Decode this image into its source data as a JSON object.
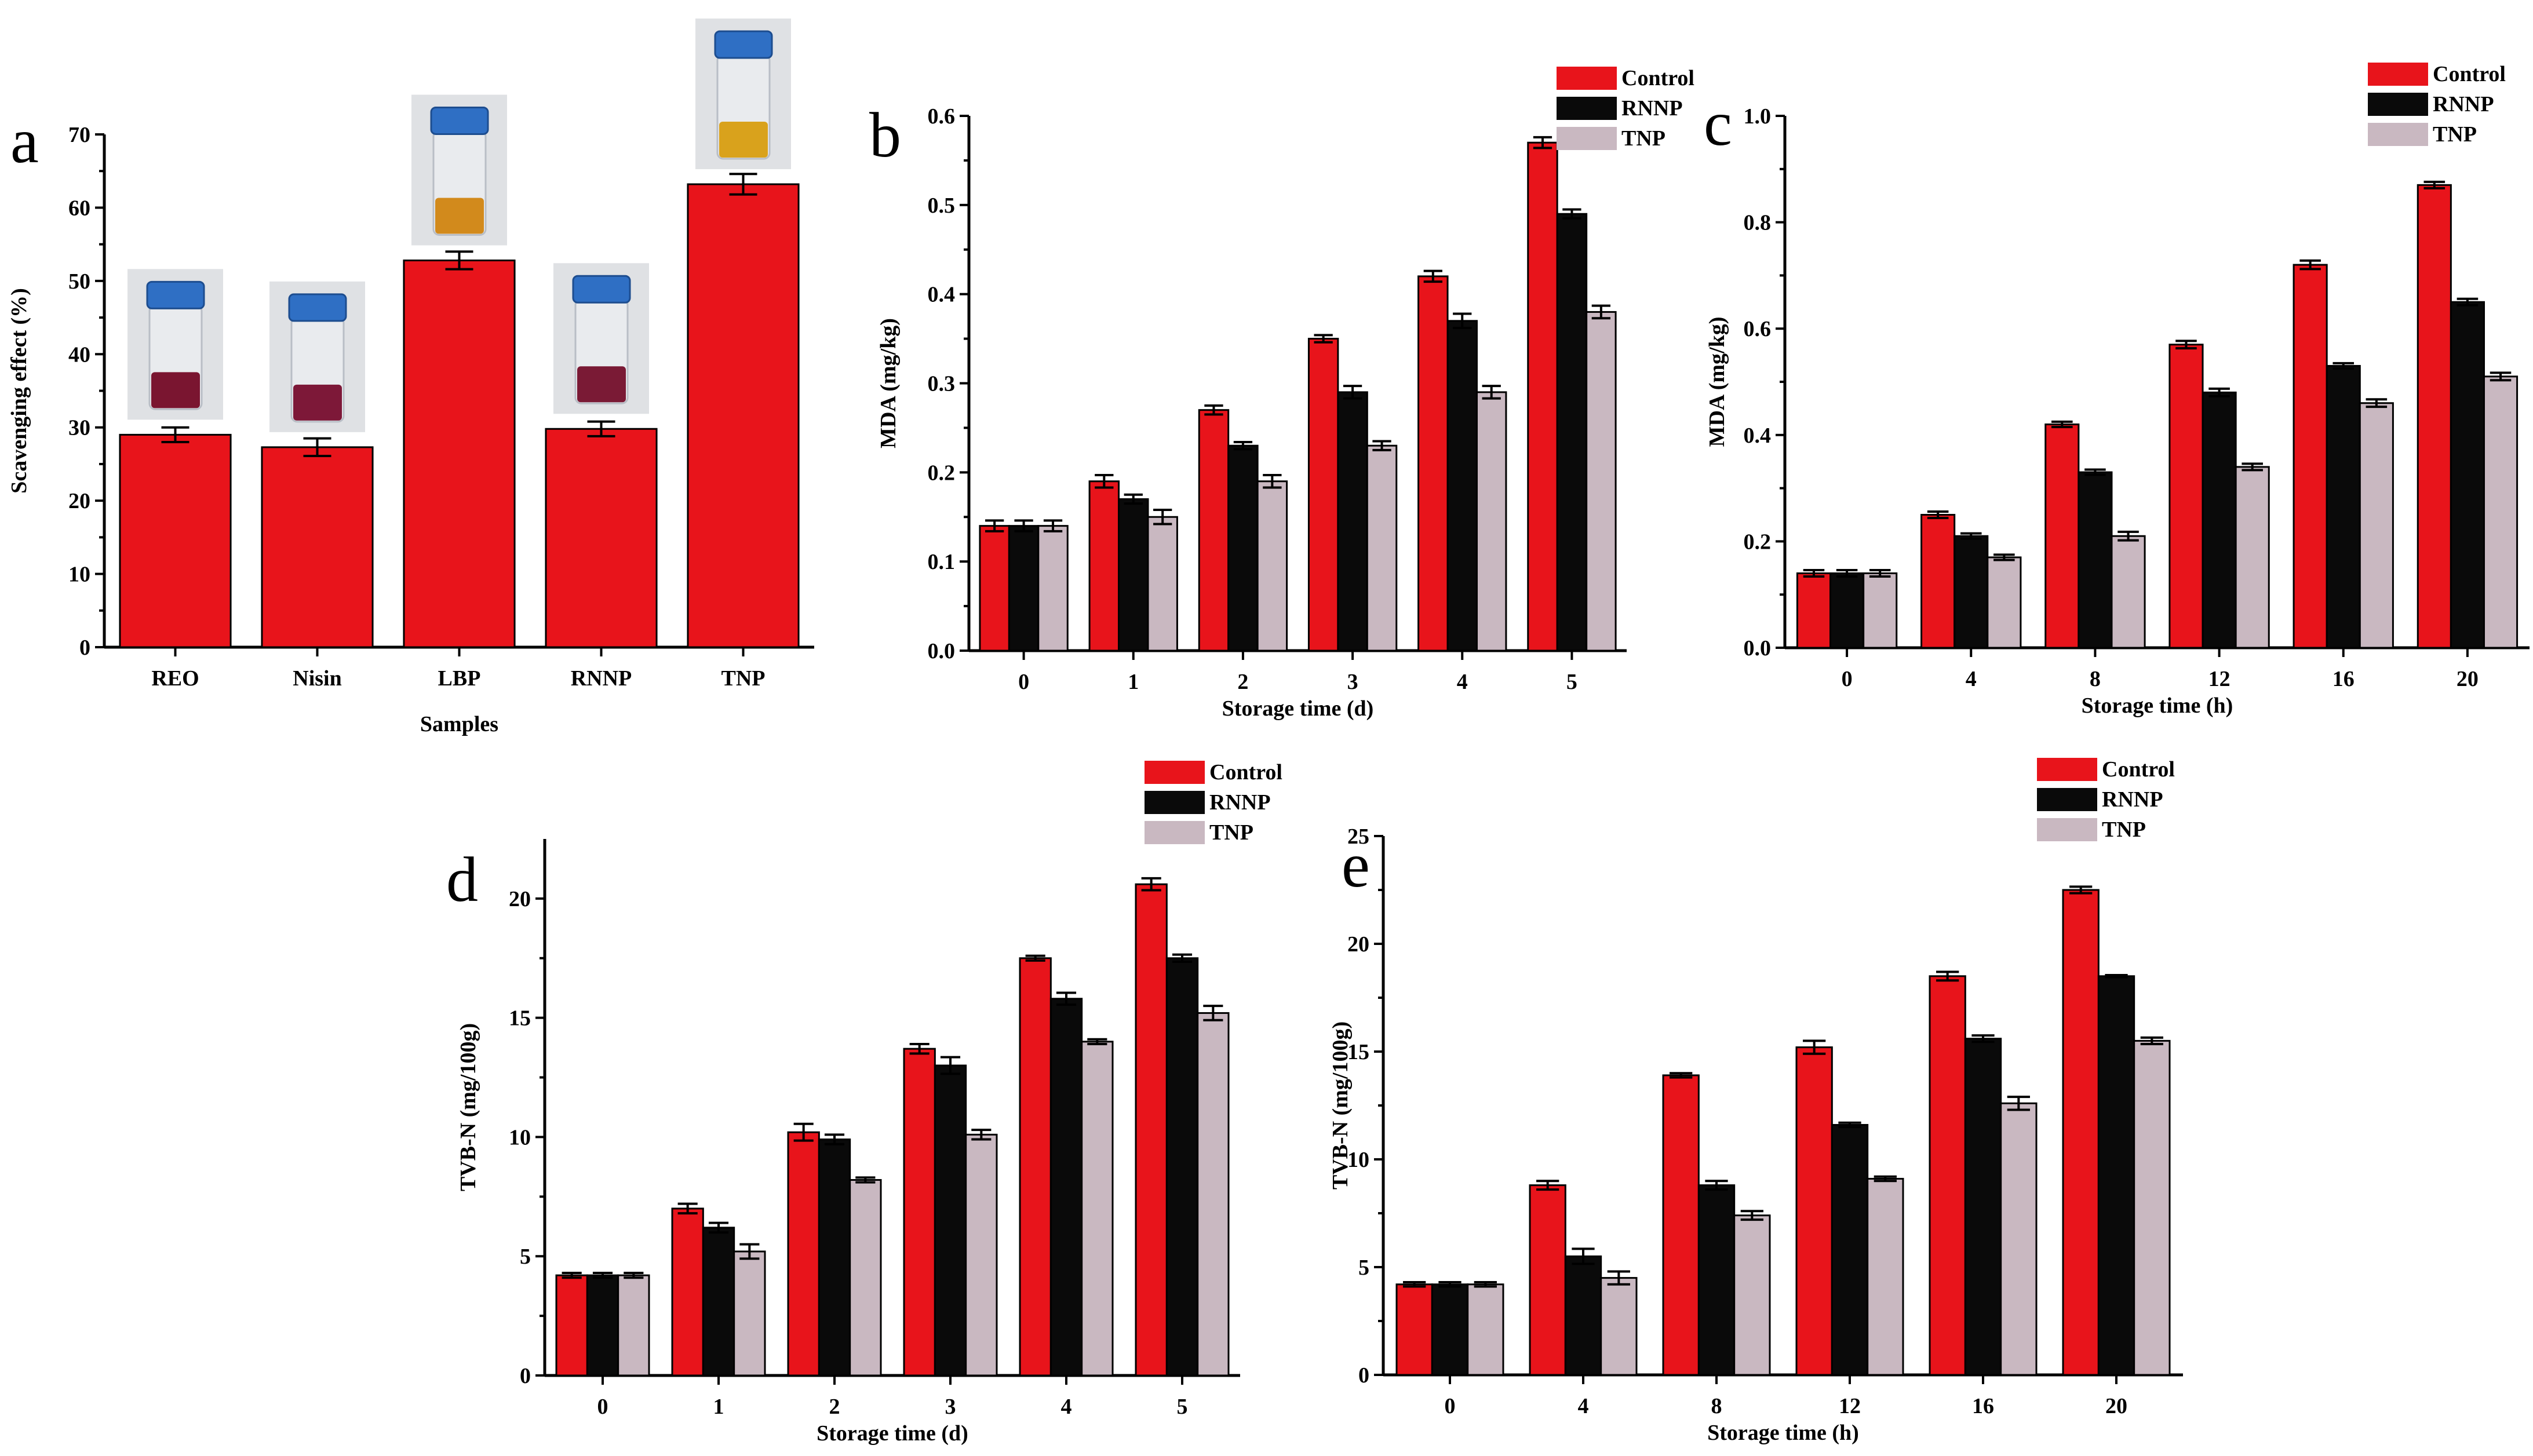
{
  "colors": {
    "control": "#e8141b",
    "rnnp": "#0a0a0a",
    "tnp": "#c9b8c1",
    "bar_single": "#e8141b"
  },
  "chart_data": [
    {
      "id": "a",
      "panel_letter": "a",
      "type": "bar",
      "title": "",
      "xlabel": "Samples",
      "ylabel": "Scavenging effect (%)",
      "ylim": [
        0,
        70
      ],
      "yticks": [
        0,
        10,
        20,
        30,
        40,
        50,
        60,
        70
      ],
      "ytick_labels": [
        "0",
        "10",
        "20",
        "30",
        "40",
        "50",
        "60",
        "70"
      ],
      "categories": [
        "REO",
        "Nisin",
        "LBP",
        "RNNP",
        "TNP"
      ],
      "series": [
        {
          "name": "Scavenging effect",
          "color_key": "bar_single",
          "values": [
            29.0,
            27.3,
            52.8,
            29.8,
            63.2
          ],
          "errors": [
            1.0,
            1.2,
            1.2,
            1.0,
            1.4
          ]
        }
      ],
      "vial_liquid_colors": [
        "#7a1530",
        "#7d1838",
        "#d28a1c",
        "#7a1a35",
        "#d9a21c"
      ]
    },
    {
      "id": "b",
      "panel_letter": "b",
      "type": "bar",
      "title": "",
      "xlabel": "Storage time (d)",
      "ylabel": "MDA (mg/kg)",
      "ylim": [
        0,
        0.6
      ],
      "yticks": [
        0,
        0.1,
        0.2,
        0.3,
        0.4,
        0.5,
        0.6
      ],
      "ytick_labels": [
        "0.0",
        "0.1",
        "0.2",
        "0.3",
        "0.4",
        "0.5",
        "0.6"
      ],
      "categories": [
        "0",
        "1",
        "2",
        "3",
        "4",
        "5"
      ],
      "legend": [
        "Control",
        "RNNP",
        "TNP"
      ],
      "series": [
        {
          "name": "Control",
          "color_key": "control",
          "values": [
            0.14,
            0.19,
            0.27,
            0.35,
            0.42,
            0.57
          ],
          "errors": [
            0.006,
            0.007,
            0.005,
            0.004,
            0.006,
            0.006
          ]
        },
        {
          "name": "RNNP",
          "color_key": "rnnp",
          "values": [
            0.14,
            0.17,
            0.23,
            0.29,
            0.37,
            0.49
          ],
          "errors": [
            0.006,
            0.005,
            0.004,
            0.007,
            0.008,
            0.005
          ]
        },
        {
          "name": "TNP",
          "color_key": "tnp",
          "values": [
            0.14,
            0.15,
            0.19,
            0.23,
            0.29,
            0.38
          ],
          "errors": [
            0.006,
            0.008,
            0.007,
            0.005,
            0.007,
            0.007
          ]
        }
      ]
    },
    {
      "id": "c",
      "panel_letter": "c",
      "type": "bar",
      "title": "",
      "xlabel": "Storage time (h)",
      "ylabel": "MDA (mg/kg)",
      "ylim": [
        0,
        1.0
      ],
      "yticks": [
        0,
        0.2,
        0.4,
        0.6,
        0.8,
        1.0
      ],
      "ytick_labels": [
        "0.0",
        "0.2",
        "0.4",
        "0.6",
        "0.8",
        "1.0"
      ],
      "categories": [
        "0",
        "4",
        "8",
        "12",
        "16",
        "20"
      ],
      "legend": [
        "Control",
        "RNNP",
        "TNP"
      ],
      "series": [
        {
          "name": "Control",
          "color_key": "control",
          "values": [
            0.14,
            0.25,
            0.42,
            0.57,
            0.72,
            0.87
          ],
          "errors": [
            0.006,
            0.006,
            0.005,
            0.007,
            0.008,
            0.006
          ]
        },
        {
          "name": "RNNP",
          "color_key": "rnnp",
          "values": [
            0.14,
            0.21,
            0.33,
            0.48,
            0.53,
            0.65
          ],
          "errors": [
            0.006,
            0.005,
            0.005,
            0.007,
            0.005,
            0.006
          ]
        },
        {
          "name": "TNP",
          "color_key": "tnp",
          "values": [
            0.14,
            0.17,
            0.21,
            0.34,
            0.46,
            0.51
          ],
          "errors": [
            0.006,
            0.005,
            0.008,
            0.006,
            0.007,
            0.007
          ]
        }
      ]
    },
    {
      "id": "d",
      "panel_letter": "d",
      "type": "bar",
      "title": "",
      "xlabel": "Storage time (d)",
      "ylabel": "TVB-N (mg/100g)",
      "ylim": [
        0,
        22.5
      ],
      "yticks": [
        0,
        5,
        10,
        15,
        20
      ],
      "ytick_labels": [
        "0",
        "5",
        "10",
        "15",
        "20"
      ],
      "categories": [
        "0",
        "1",
        "2",
        "3",
        "4",
        "5"
      ],
      "legend": [
        "Control",
        "RNNP",
        "TNP"
      ],
      "series": [
        {
          "name": "Control",
          "color_key": "control",
          "values": [
            4.2,
            7.0,
            10.2,
            13.7,
            17.5,
            20.6
          ],
          "errors": [
            0.1,
            0.2,
            0.35,
            0.2,
            0.1,
            0.25
          ]
        },
        {
          "name": "RNNP",
          "color_key": "rnnp",
          "values": [
            4.2,
            6.2,
            9.9,
            13.0,
            15.8,
            17.5
          ],
          "errors": [
            0.1,
            0.2,
            0.2,
            0.35,
            0.25,
            0.15
          ]
        },
        {
          "name": "TNP",
          "color_key": "tnp",
          "values": [
            4.2,
            5.2,
            8.2,
            10.1,
            14.0,
            15.2
          ],
          "errors": [
            0.1,
            0.3,
            0.1,
            0.2,
            0.1,
            0.3
          ]
        }
      ]
    },
    {
      "id": "e",
      "panel_letter": "e",
      "type": "bar",
      "title": "",
      "xlabel": "Storage time (h)",
      "ylabel": "TVB-N (mg/100g)",
      "ylim": [
        0,
        25
      ],
      "yticks": [
        0,
        5,
        10,
        15,
        20,
        25
      ],
      "ytick_labels": [
        "0",
        "5",
        "10",
        "15",
        "20",
        "25"
      ],
      "categories": [
        "0",
        "4",
        "8",
        "12",
        "16",
        "20"
      ],
      "legend": [
        "Control",
        "RNNP",
        "TNP"
      ],
      "series": [
        {
          "name": "Control",
          "color_key": "control",
          "values": [
            4.2,
            8.8,
            13.9,
            15.2,
            18.5,
            22.5
          ],
          "errors": [
            0.1,
            0.2,
            0.1,
            0.3,
            0.2,
            0.15
          ]
        },
        {
          "name": "RNNP",
          "color_key": "rnnp",
          "values": [
            4.2,
            5.5,
            8.8,
            11.6,
            15.6,
            18.5
          ],
          "errors": [
            0.1,
            0.35,
            0.2,
            0.1,
            0.15,
            0.05
          ]
        },
        {
          "name": "TNP",
          "color_key": "tnp",
          "values": [
            4.2,
            4.5,
            7.4,
            9.1,
            12.6,
            15.5
          ],
          "errors": [
            0.1,
            0.3,
            0.2,
            0.1,
            0.3,
            0.15
          ]
        }
      ]
    }
  ]
}
